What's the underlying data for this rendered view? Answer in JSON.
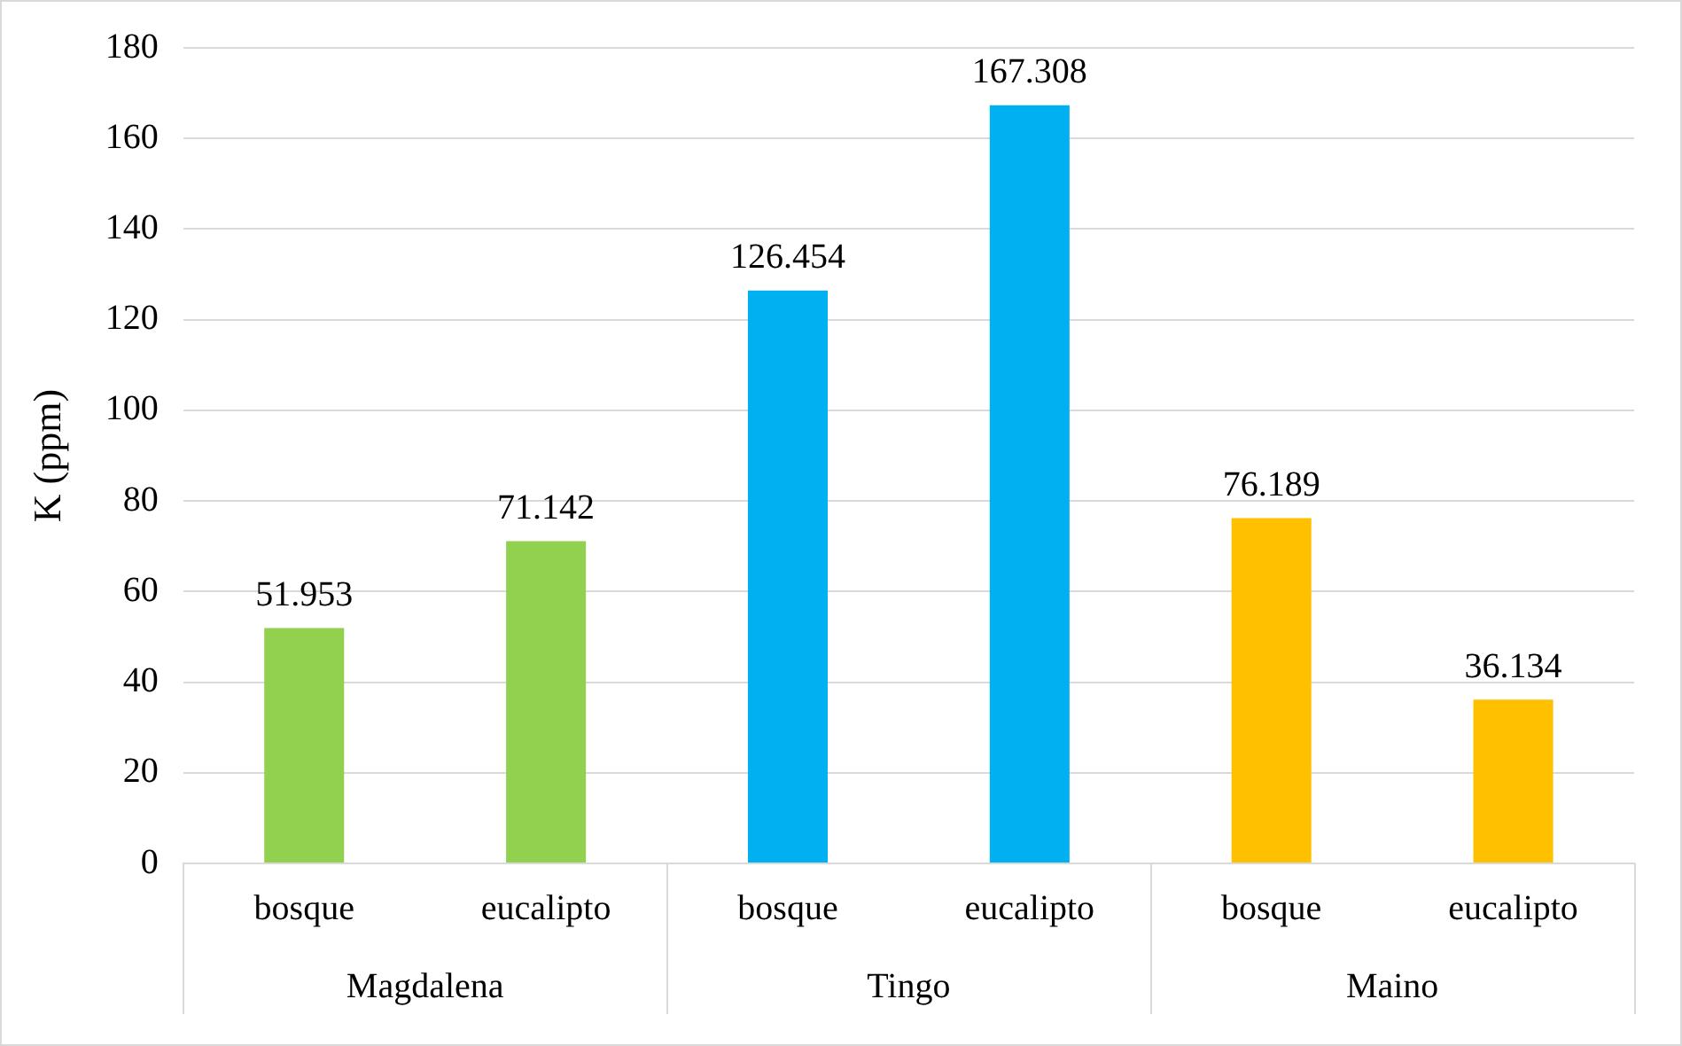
{
  "chart_data": {
    "type": "bar",
    "ylabel": "K (ppm)",
    "categories": [
      "bosque",
      "eucalipto",
      "bosque",
      "eucalipto",
      "bosque",
      "eucalipto"
    ],
    "values": [
      51.953,
      71.142,
      126.454,
      167.308,
      76.189,
      36.134
    ],
    "colors": [
      "#92d050",
      "#92d050",
      "#00b0f0",
      "#00b0f0",
      "#ffc000",
      "#ffc000"
    ],
    "ylim": [
      0,
      180
    ],
    "yticks": [
      0,
      20,
      40,
      60,
      80,
      100,
      120,
      140,
      160,
      180
    ],
    "grid": "y",
    "data_labels": true,
    "annotations": [
      "Magdalena",
      "Tingo",
      "Maino"
    ]
  }
}
